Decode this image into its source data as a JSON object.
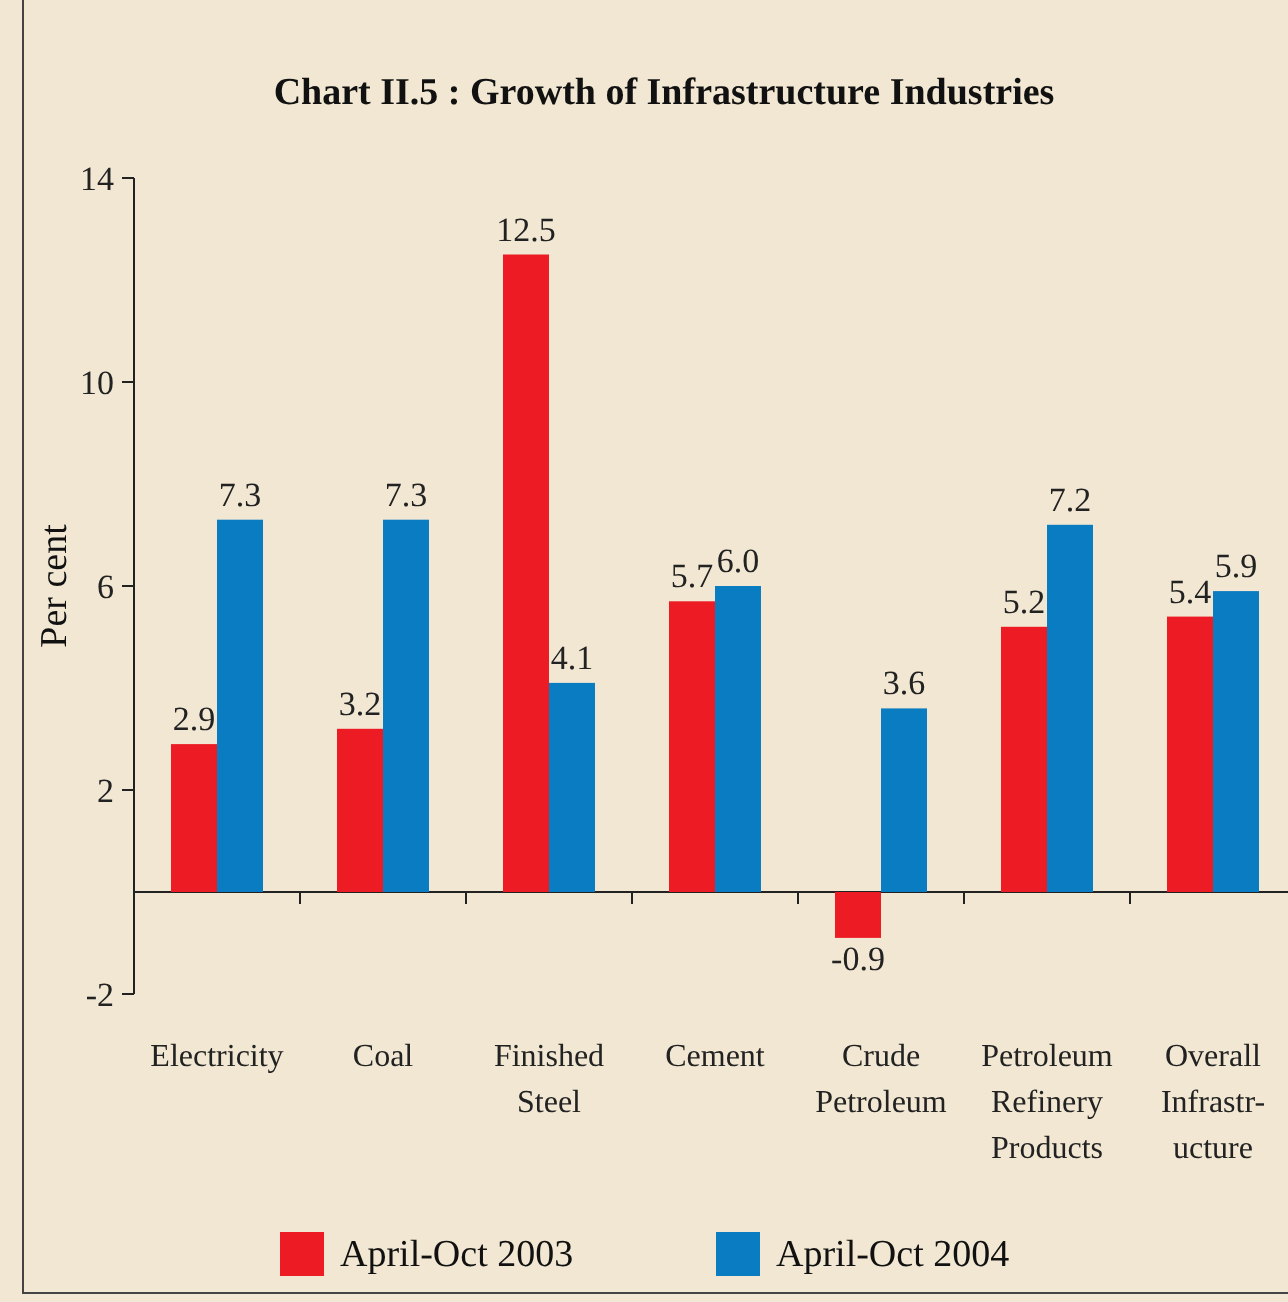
{
  "chart_data": {
    "type": "bar",
    "title": "Chart II.5 : Growth of Infrastructure Industries",
    "ylabel": "Per cent",
    "categories": [
      "Electricity",
      "Coal",
      "Finished Steel",
      "Cement",
      "Crude Petroleum",
      "Petroleum Refinery Products",
      "Overall Infrastr-ucture"
    ],
    "series": [
      {
        "name": "April-Oct 2003",
        "color": "#ed1c24",
        "values": [
          2.9,
          3.2,
          12.5,
          5.7,
          -0.9,
          5.2,
          5.4
        ],
        "value_labels": [
          "2.9",
          "3.2",
          "12.5",
          "5.7",
          "-0.9",
          "5.2",
          "5.4"
        ]
      },
      {
        "name": "April-Oct 2004",
        "color": "#0a7dc2",
        "values": [
          7.3,
          7.3,
          4.1,
          6.0,
          3.6,
          7.2,
          5.9
        ],
        "value_labels": [
          "7.3",
          "7.3",
          "4.1",
          "6.0",
          "3.6",
          "7.2",
          "5.9"
        ]
      }
    ],
    "ylim": [
      -2,
      14
    ],
    "yticks": [
      -2,
      2,
      6,
      10,
      14
    ],
    "legend": "bottom",
    "grid": false
  }
}
